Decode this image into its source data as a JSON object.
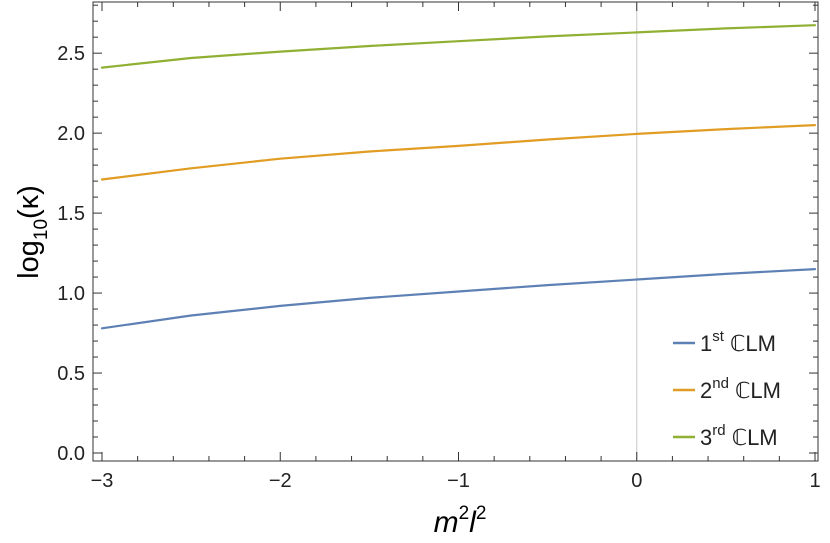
{
  "chart_data": {
    "type": "line",
    "xlabel": {
      "base1": "m",
      "sup1": "2",
      "base2": "l",
      "sup2": "2"
    },
    "ylabel": {
      "prefix": "log",
      "sub": "10",
      "suffix": "(κ)"
    },
    "xlim": [
      -3,
      1
    ],
    "ylim": [
      -0.05,
      2.82
    ],
    "xticks": [
      {
        "value": -3,
        "label": "−3"
      },
      {
        "value": -2,
        "label": "−2"
      },
      {
        "value": -1,
        "label": "−1"
      },
      {
        "value": 0,
        "label": "0"
      },
      {
        "value": 1,
        "label": "1"
      }
    ],
    "yticks": [
      {
        "value": 0.0,
        "label": "0.0"
      },
      {
        "value": 0.5,
        "label": "0.5"
      },
      {
        "value": 1.0,
        "label": "1.0"
      },
      {
        "value": 1.5,
        "label": "1.5"
      },
      {
        "value": 2.0,
        "label": "2.0"
      },
      {
        "value": 2.5,
        "label": "2.5"
      }
    ],
    "x": [
      -3,
      -2.5,
      -2,
      -1.5,
      -1,
      -0.5,
      0,
      0.5,
      1
    ],
    "series": [
      {
        "name": "1st ℂLM",
        "label_num": "1",
        "label_sup": "st",
        "label_rest": " ℂLM",
        "color": "#5E81B5",
        "values": [
          0.78,
          0.86,
          0.92,
          0.97,
          1.01,
          1.05,
          1.085,
          1.12,
          1.15
        ]
      },
      {
        "name": "2nd ℂLM",
        "label_num": "2",
        "label_sup": "nd",
        "label_rest": " ℂLM",
        "color": "#E19C24",
        "values": [
          1.71,
          1.78,
          1.84,
          1.885,
          1.92,
          1.96,
          1.995,
          2.025,
          2.05
        ]
      },
      {
        "name": "3rd ℂLM",
        "label_num": "3",
        "label_sup": "rd",
        "label_rest": " ℂLM",
        "color": "#8FB032",
        "values": [
          2.41,
          2.47,
          2.51,
          2.545,
          2.575,
          2.605,
          2.63,
          2.655,
          2.675
        ]
      }
    ],
    "grid": false,
    "vertical_reference_line_at_x": 0,
    "legend_position": "bottom-right",
    "frame": true
  }
}
